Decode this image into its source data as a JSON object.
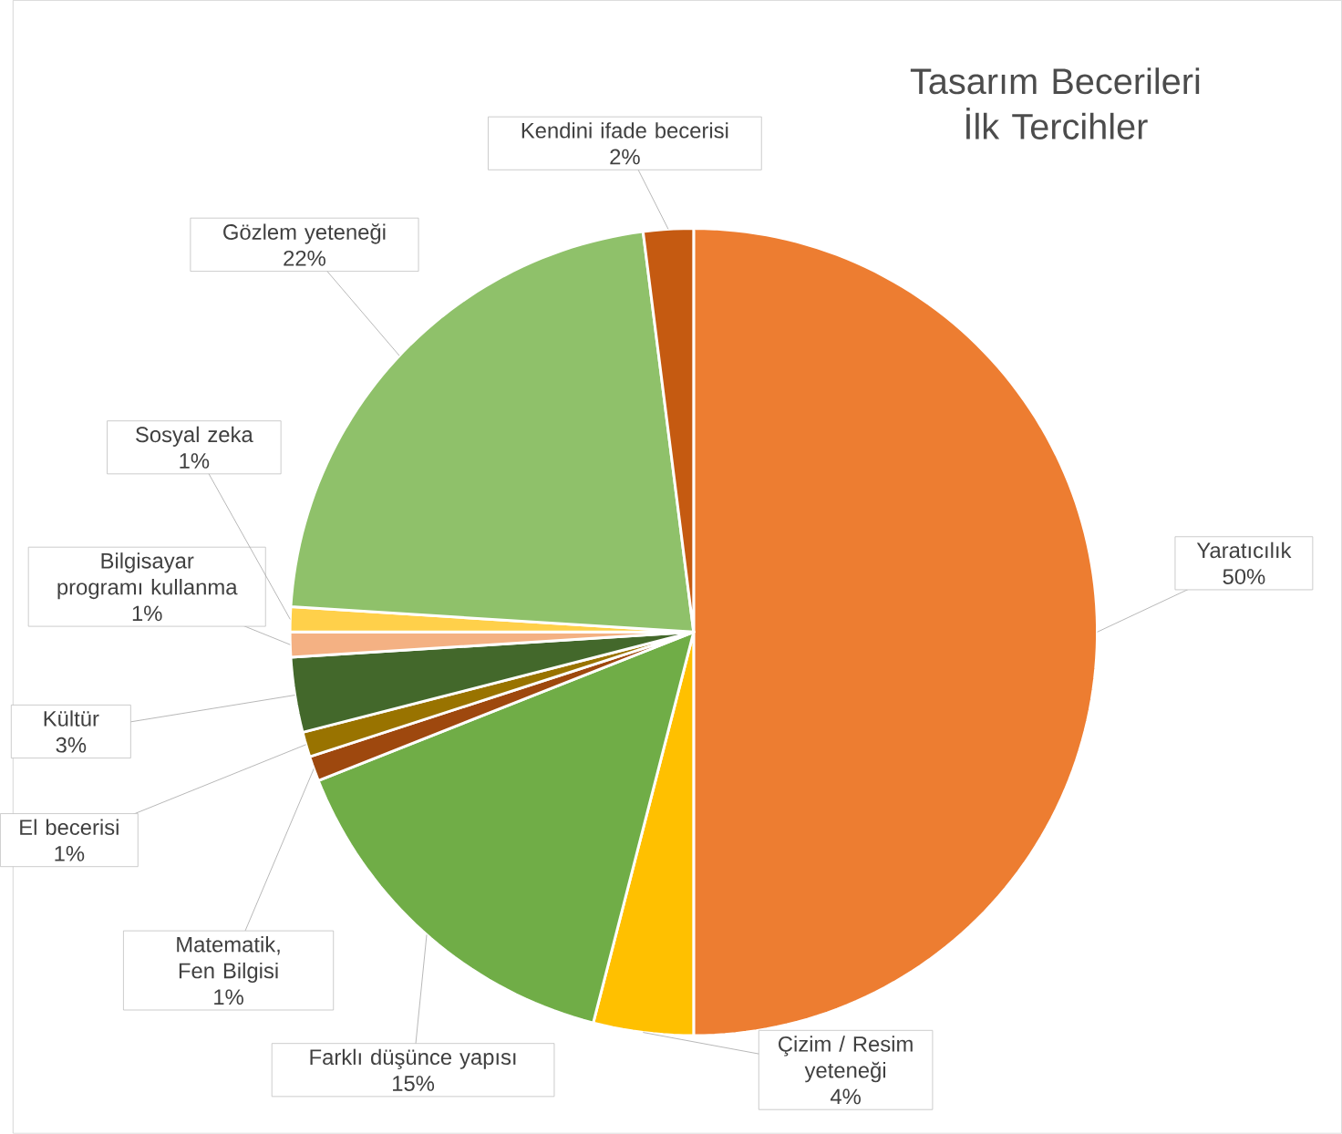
{
  "chart_data": {
    "type": "pie",
    "title": "Tasarım Becerileri İlk Tercihler",
    "categories": [
      "Yaratıcılık",
      "Çizim / Resim yeteneği",
      "Farklı düşünce yapısı",
      "Matematik, Fen Bilgisi",
      "El becerisi",
      "Kültür",
      "Bilgisayar programı kullanma",
      "Sosyal zeka",
      "Gözlem yeteneği",
      "Kendini ifade becerisi"
    ],
    "values": [
      50,
      4,
      15,
      1,
      1,
      3,
      1,
      1,
      22,
      2
    ],
    "colors": [
      "#ed7d31",
      "#ffc000",
      "#70ad47",
      "#9e480e",
      "#997300",
      "#43682b",
      "#f4b183",
      "#ffd04a",
      "#8fc16a",
      "#c55a11"
    ],
    "value_labels": [
      "50%",
      "4%",
      "15%",
      "1%",
      "1%",
      "3%",
      "1%",
      "1%",
      "22%",
      "2%"
    ]
  }
}
